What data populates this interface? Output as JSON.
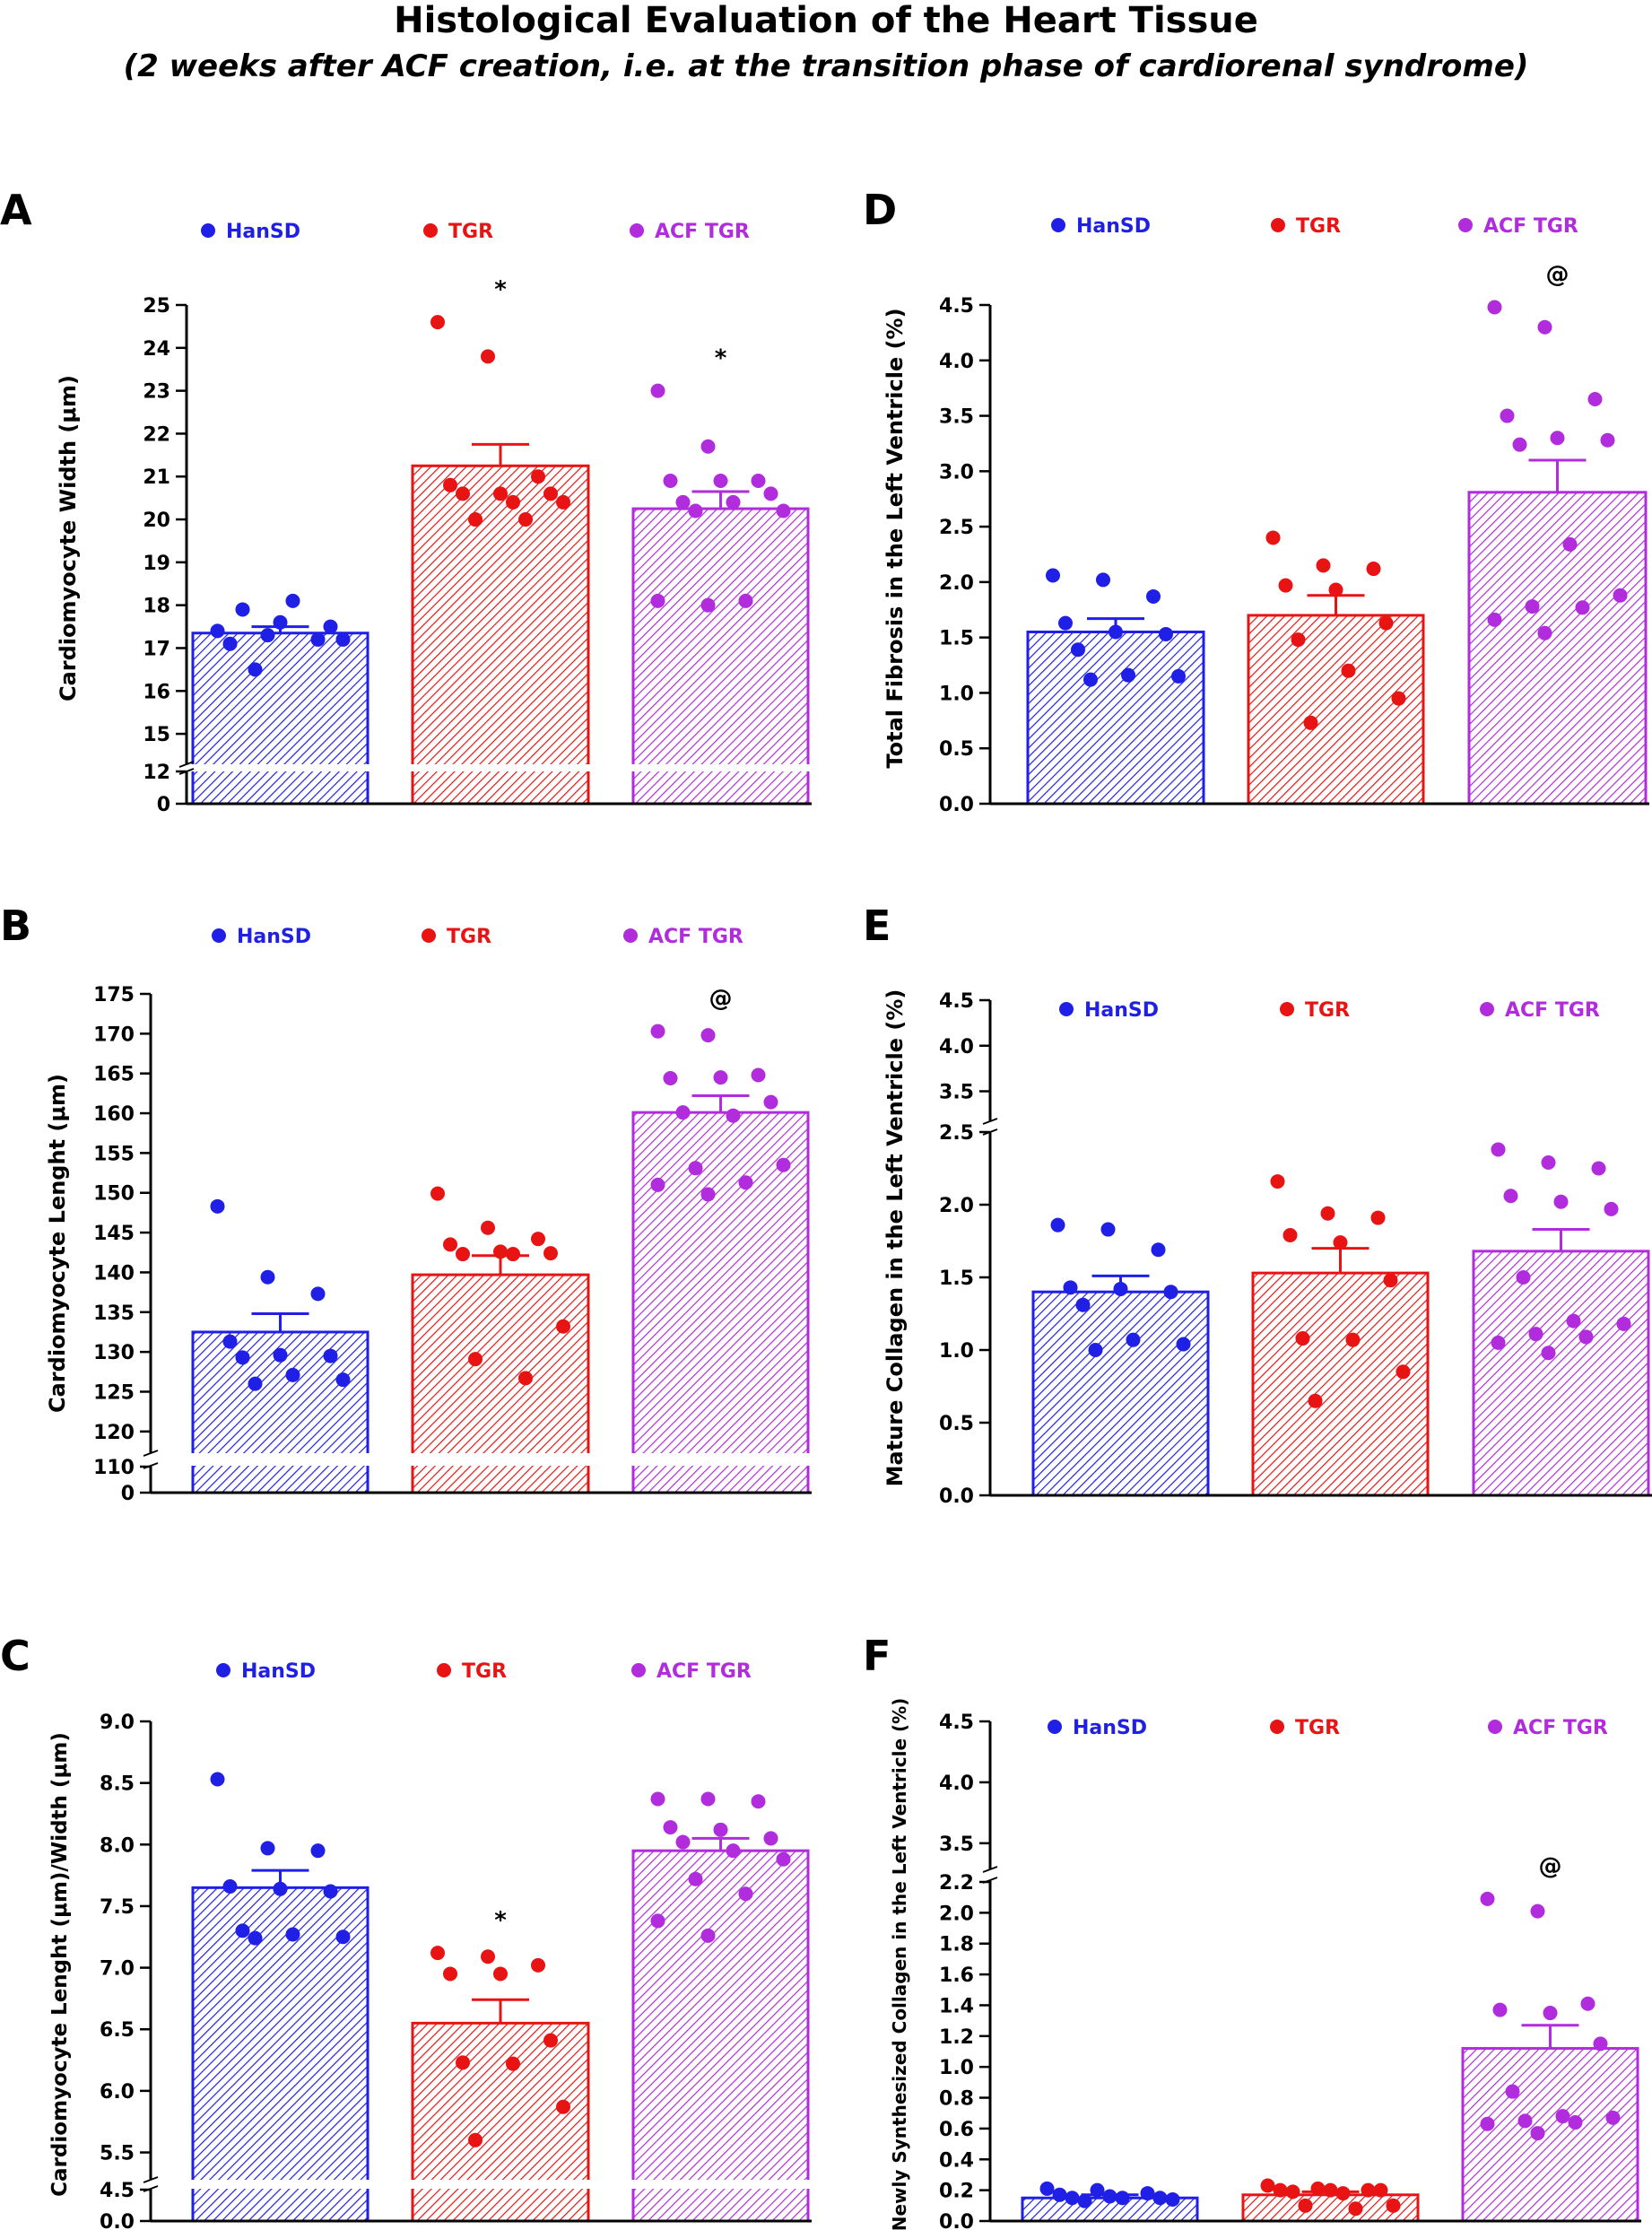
{
  "figure": {
    "title": "Histological Evaluation of the Heart Tissue",
    "subtitle": "(2 weeks after ACF creation, i.e. at the transition phase of cardiorenal syndrome)",
    "colors": {
      "HanSD": "#1f1fe6",
      "TGR": "#e81414",
      "ACF TGR": "#b02cdc"
    }
  },
  "chart_data": [
    {
      "id": "A",
      "panel_label": "A",
      "type": "bar",
      "ylabel": "Cardiomyocyte Width (μm)",
      "legend": [
        "HanSD",
        "TGR",
        "ACF TGR"
      ],
      "categories": [
        "HanSD",
        "TGR",
        "ACF TGR"
      ],
      "axis_break": {
        "lower": [
          0,
          12
        ],
        "upper": [
          14.5,
          25
        ]
      },
      "ticks_lower": [
        0,
        12
      ],
      "ticks_upper": [
        15,
        16,
        17,
        18,
        19,
        20,
        21,
        22,
        23,
        24,
        25
      ],
      "means": [
        17.35,
        21.25,
        20.25
      ],
      "sem": [
        0.15,
        0.5,
        0.4
      ],
      "annotations": [
        "",
        "*",
        "*"
      ],
      "points": [
        [
          17.4,
          17.3,
          17.2,
          17.1,
          17.6,
          17.5,
          17.9,
          18.1,
          17.2,
          16.5
        ],
        [
          24.6,
          23.8,
          21.0,
          20.8,
          20.6,
          20.6,
          20.6,
          20.4,
          20.4,
          20.0,
          20.0
        ],
        [
          23.0,
          21.7,
          20.9,
          20.9,
          20.9,
          20.6,
          20.4,
          20.4,
          20.2,
          20.2,
          18.1,
          18.1,
          18.0
        ]
      ]
    },
    {
      "id": "B",
      "panel_label": "B",
      "type": "bar",
      "ylabel": "Cardiomyocyte Lenght (μm)",
      "legend": [
        "HanSD",
        "TGR",
        "ACF TGR"
      ],
      "categories": [
        "HanSD",
        "TGR",
        "ACF TGR"
      ],
      "axis_break": {
        "lower": [
          0,
          110
        ],
        "upper": [
          117.5,
          175
        ]
      },
      "ticks_lower": [
        0,
        110
      ],
      "ticks_upper": [
        120,
        125,
        130,
        135,
        140,
        145,
        150,
        155,
        160,
        165,
        170,
        175
      ],
      "means": [
        132.5,
        139.7,
        160.1
      ],
      "sem": [
        2.3,
        2.4,
        2.1
      ],
      "annotations": [
        "",
        "",
        "@"
      ],
      "points": [
        [
          148.3,
          139.4,
          137.3,
          131.3,
          129.6,
          129.5,
          129.3,
          127.1,
          126.5,
          126.0
        ],
        [
          149.9,
          145.6,
          144.2,
          143.5,
          142.6,
          142.4,
          142.3,
          142.3,
          133.2,
          129.1,
          126.7
        ],
        [
          170.3,
          169.8,
          164.8,
          164.4,
          164.5,
          161.4,
          160.1,
          159.7,
          153.5,
          153.1,
          151.3,
          151.0,
          149.8
        ]
      ]
    },
    {
      "id": "C",
      "panel_label": "C",
      "type": "bar",
      "ylabel": "Cardiomyocyte Lenght (μm)/Width (μm)",
      "legend": [
        "HanSD",
        "TGR",
        "ACF TGR"
      ],
      "categories": [
        "HanSD",
        "TGR",
        "ACF TGR"
      ],
      "axis_break": {
        "lower": [
          0,
          4.5
        ],
        "upper": [
          5.3,
          9.0
        ]
      },
      "ticks_lower": [
        0.0,
        4.5
      ],
      "ticks_upper": [
        5.5,
        6.0,
        6.5,
        7.0,
        7.5,
        8.0,
        8.5,
        9.0
      ],
      "ticks_decimals": 1,
      "means": [
        7.65,
        6.55,
        7.95
      ],
      "sem": [
        0.14,
        0.19,
        0.1
      ],
      "annotations": [
        "",
        "*",
        ""
      ],
      "points": [
        [
          8.53,
          7.97,
          7.95,
          7.66,
          7.64,
          7.62,
          7.3,
          7.27,
          7.25,
          7.24
        ],
        [
          7.12,
          7.09,
          7.02,
          6.95,
          6.95,
          6.41,
          6.23,
          6.22,
          5.87,
          5.6
        ],
        [
          8.37,
          8.37,
          8.35,
          8.14,
          8.12,
          8.05,
          8.02,
          7.95,
          7.88,
          7.72,
          7.6,
          7.38,
          7.26
        ]
      ]
    },
    {
      "id": "D",
      "panel_label": "D",
      "type": "bar",
      "ylabel": "Total Fibrosis in the Left Ventricle (%)",
      "legend": [
        "HanSD",
        "TGR",
        "ACF TGR"
      ],
      "categories": [
        "HanSD",
        "TGR",
        "ACF TGR"
      ],
      "ylim": [
        0,
        4.5
      ],
      "ticks": [
        0.0,
        0.5,
        1.0,
        1.5,
        2.0,
        2.5,
        3.0,
        3.5,
        4.0,
        4.5
      ],
      "ticks_decimals": 1,
      "means": [
        1.55,
        1.7,
        2.81
      ],
      "sem": [
        0.12,
        0.18,
        0.29
      ],
      "annotations": [
        "",
        "",
        "@"
      ],
      "points": [
        [
          2.06,
          2.02,
          1.87,
          1.63,
          1.55,
          1.53,
          1.39,
          1.16,
          1.15,
          1.12
        ],
        [
          2.4,
          2.15,
          2.12,
          1.97,
          1.93,
          1.63,
          1.48,
          1.2,
          0.95,
          0.73
        ],
        [
          4.48,
          4.3,
          3.65,
          3.5,
          3.3,
          3.28,
          3.24,
          2.34,
          1.88,
          1.78,
          1.77,
          1.66,
          1.54
        ]
      ]
    },
    {
      "id": "E",
      "panel_label": "E",
      "type": "bar",
      "ylabel": "Mature Collagen in the Left Ventricle (%)",
      "legend": [
        "HanSD",
        "TGR",
        "ACF TGR"
      ],
      "categories": [
        "HanSD",
        "TGR",
        "ACF TGR"
      ],
      "axis_break": {
        "lower": [
          0,
          2.5
        ],
        "upper": [
          3.2,
          4.5
        ]
      },
      "ticks_lower": [
        0.0,
        0.5,
        1.0,
        1.5,
        2.0,
        2.5
      ],
      "ticks_upper": [
        3.5,
        4.0,
        4.5
      ],
      "ticks_decimals": 1,
      "means": [
        1.4,
        1.53,
        1.68
      ],
      "sem": [
        0.11,
        0.17,
        0.15
      ],
      "annotations": [
        "",
        "",
        ""
      ],
      "points": [
        [
          1.86,
          1.83,
          1.69,
          1.43,
          1.42,
          1.4,
          1.31,
          1.07,
          1.04,
          1.0
        ],
        [
          2.16,
          1.94,
          1.91,
          1.79,
          1.74,
          1.48,
          1.08,
          1.07,
          0.85,
          0.65
        ],
        [
          2.38,
          2.29,
          2.25,
          2.06,
          2.02,
          1.97,
          1.5,
          1.2,
          1.18,
          1.11,
          1.09,
          1.05,
          0.98
        ]
      ]
    },
    {
      "id": "F",
      "panel_label": "F",
      "type": "bar",
      "ylabel": "Newly Synthesized Collagen in the Left Ventricle (%)",
      "legend": [
        "HanSD",
        "TGR",
        "ACF TGR"
      ],
      "categories": [
        "HanSD",
        "TGR",
        "ACF TGR"
      ],
      "axis_break": {
        "lower": [
          0,
          2.2
        ],
        "upper": [
          3.3,
          4.5
        ]
      },
      "ticks_lower": [
        0.0,
        0.2,
        0.4,
        0.6,
        0.8,
        1.0,
        1.2,
        1.4,
        1.6,
        1.8,
        2.0,
        2.2
      ],
      "ticks_upper": [
        3.5,
        4.0,
        4.5
      ],
      "ticks_decimals": 1,
      "means": [
        0.15,
        0.17,
        1.12
      ],
      "sem": [
        0.02,
        0.02,
        0.15
      ],
      "annotations": [
        "",
        "",
        "@"
      ],
      "points": [
        [
          0.21,
          0.2,
          0.18,
          0.17,
          0.16,
          0.15,
          0.15,
          0.15,
          0.14,
          0.13
        ],
        [
          0.23,
          0.21,
          0.2,
          0.2,
          0.2,
          0.2,
          0.19,
          0.18,
          0.1,
          0.1,
          0.08
        ],
        [
          2.09,
          2.01,
          1.41,
          1.37,
          1.35,
          1.15,
          0.84,
          0.68,
          0.67,
          0.65,
          0.64,
          0.63,
          0.57
        ]
      ]
    }
  ]
}
